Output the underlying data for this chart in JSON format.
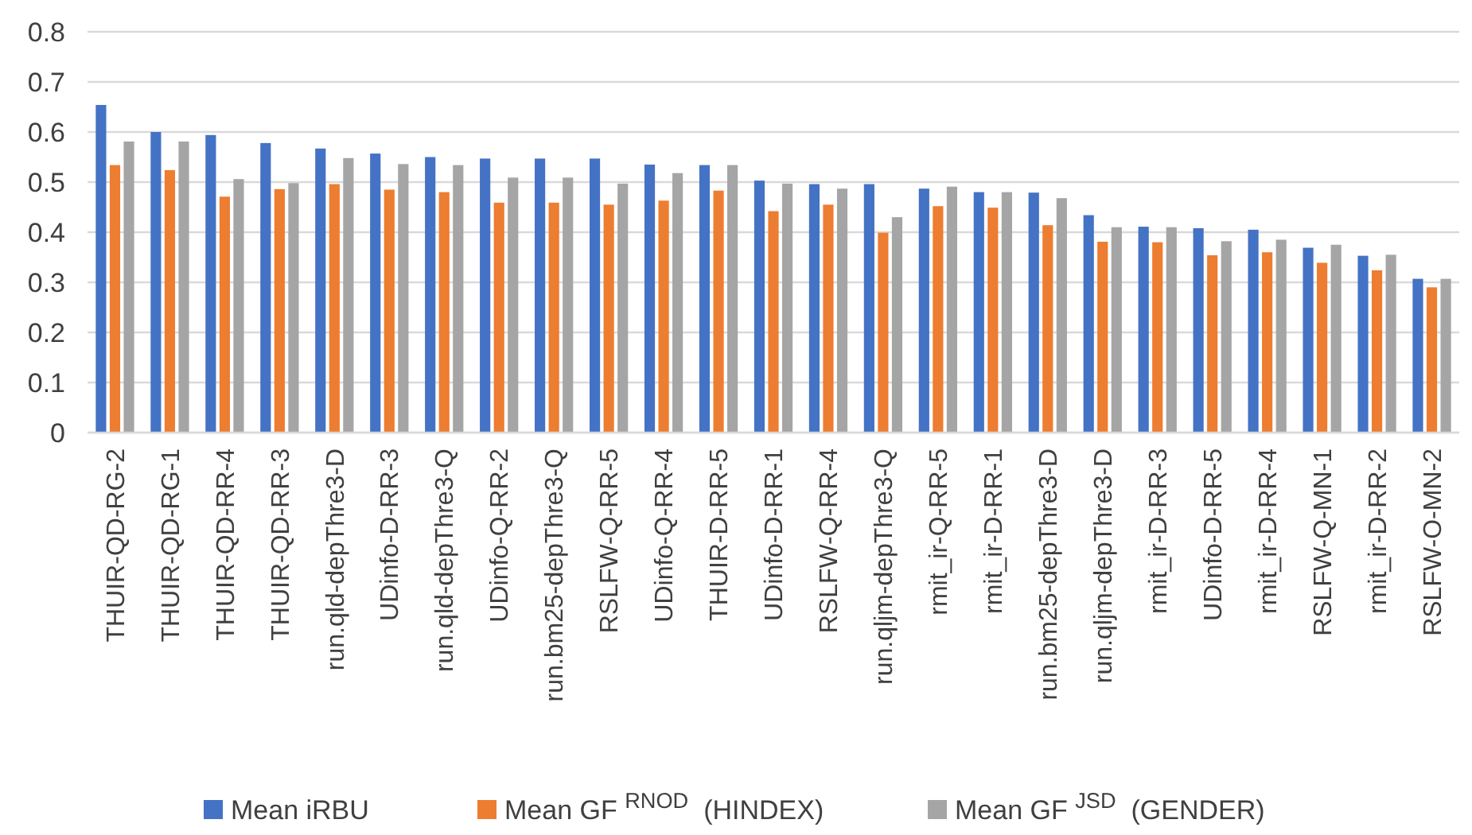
{
  "chart_data": {
    "type": "bar",
    "categories": [
      "THUIR-QD-RG-2",
      "THUIR-QD-RG-1",
      "THUIR-QD-RR-4",
      "THUIR-QD-RR-3",
      "run.qld-depThre3-D",
      "UDinfo-D-RR-3",
      "run.qld-depThre3-Q",
      "UDinfo-Q-RR-2",
      "run.bm25-depThre3-Q",
      "RSLFW-Q-RR-5",
      "UDinfo-Q-RR-4",
      "THUIR-D-RR-5",
      "UDinfo-D-RR-1",
      "RSLFW-Q-RR-4",
      "run.qljm-depThre3-Q",
      "rmit_ir-Q-RR-5",
      "rmit_ir-D-RR-1",
      "run.bm25-depThre3-D",
      "run.qljm-depThre3-D",
      "rmit_ir-D-RR-3",
      "UDinfo-D-RR-5",
      "rmit_ir-D-RR-4",
      "RSLFW-Q-MN-1",
      "rmit_ir-D-RR-2",
      "RSLFW-O-MN-2"
    ],
    "series": [
      {
        "name": "Mean iRBU",
        "color": "#4472c4",
        "values": [
          0.654,
          0.6,
          0.594,
          0.578,
          0.567,
          0.557,
          0.55,
          0.547,
          0.547,
          0.547,
          0.535,
          0.534,
          0.503,
          0.496,
          0.496,
          0.487,
          0.48,
          0.479,
          0.434,
          0.411,
          0.408,
          0.405,
          0.369,
          0.353,
          0.307
        ]
      },
      {
        "name": "Mean GF $^{RNOD}$  (HINDEX)",
        "color": "#ed7d31",
        "values": [
          0.534,
          0.524,
          0.471,
          0.486,
          0.496,
          0.485,
          0.48,
          0.459,
          0.459,
          0.455,
          0.463,
          0.483,
          0.442,
          0.455,
          0.399,
          0.452,
          0.449,
          0.414,
          0.381,
          0.38,
          0.354,
          0.36,
          0.339,
          0.324,
          0.29
        ]
      },
      {
        "name": "Mean GF $^{JSD}$  (GENDER)",
        "color": "#a5a5a5",
        "values": [
          0.581,
          0.581,
          0.506,
          0.498,
          0.548,
          0.536,
          0.534,
          0.509,
          0.509,
          0.497,
          0.518,
          0.534,
          0.497,
          0.487,
          0.43,
          0.491,
          0.48,
          0.468,
          0.41,
          0.41,
          0.382,
          0.385,
          0.375,
          0.355,
          0.307
        ]
      }
    ],
    "ylim": [
      0,
      0.8
    ],
    "yticks": [
      0,
      0.1,
      0.2,
      0.3,
      0.4,
      0.5,
      0.6,
      0.7,
      0.8
    ],
    "grid": "y",
    "legend": "bottom"
  }
}
